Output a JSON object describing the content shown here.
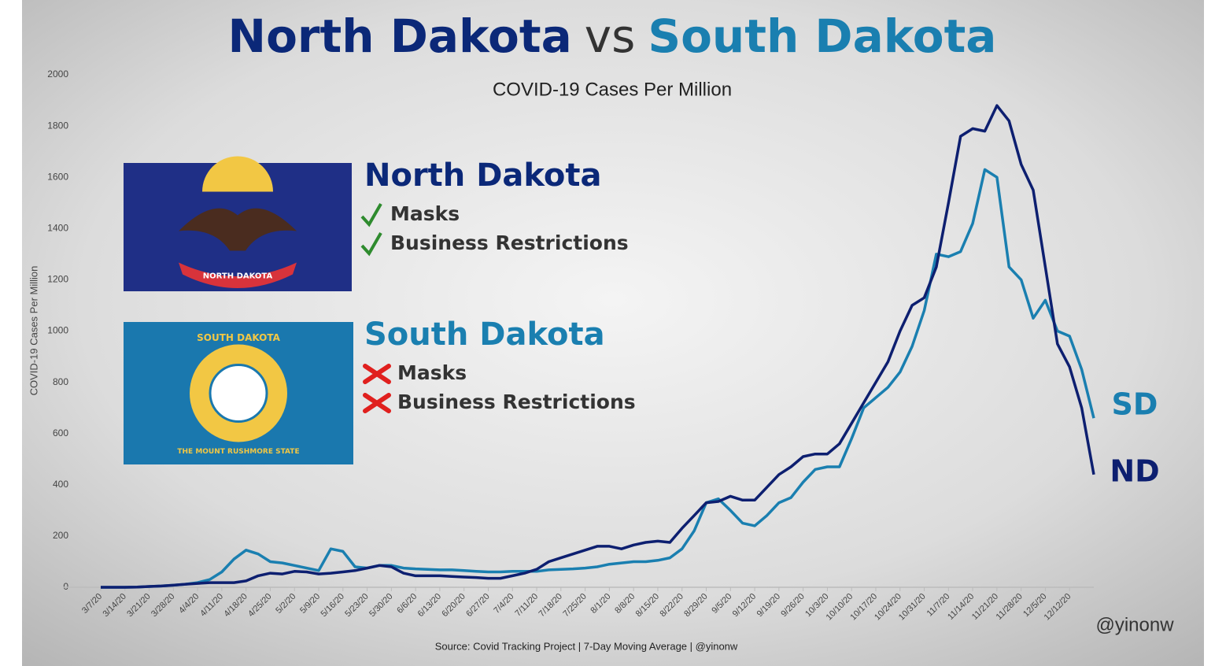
{
  "chart_data": {
    "type": "line",
    "title_parts": [
      {
        "text": "North Dakota",
        "color": "#0b2878"
      },
      {
        "text": "vs",
        "color": "#333333"
      },
      {
        "text": "South Dakota",
        "color": "#1a7fb0"
      }
    ],
    "subtitle": "COVID-19 Cases Per Million",
    "y_label": "COVID-19 Cases Per Million",
    "source": "Source: Covid Tracking Project | 7-Day Moving Average | @yinonw",
    "credit": "@yinonw",
    "categories": [
      "3/7/20",
      null,
      "3/14/20",
      null,
      "3/21/20",
      null,
      "3/28/20",
      null,
      "4/4/20",
      null,
      "4/11/20",
      null,
      "4/18/20",
      null,
      "4/25/20",
      null,
      "5/2/20",
      null,
      "5/9/20",
      null,
      "5/16/20",
      null,
      "5/23/20",
      null,
      "5/30/20",
      null,
      "6/6/20",
      null,
      "6/13/20",
      null,
      "6/20/20",
      null,
      "6/27/20",
      null,
      "7/4/20",
      null,
      "7/11/20",
      null,
      "7/18/20",
      null,
      "7/25/20",
      null,
      "8/1/20",
      null,
      "8/8/20",
      null,
      "8/15/20",
      null,
      "8/22/20",
      null,
      "8/29/20",
      null,
      "9/5/20",
      null,
      "9/12/20",
      null,
      "9/19/20",
      null,
      "9/26/20",
      null,
      "10/3/20",
      null,
      "10/10/20",
      null,
      "10/17/20",
      null,
      "10/24/20",
      null,
      "10/31/20",
      null,
      "11/7/20",
      null,
      "11/14/20",
      null,
      "11/21/20",
      null,
      "11/28/20",
      null,
      "12/5/20",
      null,
      "12/12/20",
      null,
      null
    ],
    "series": [
      {
        "name": "South Dakota",
        "end_label": "SD",
        "color": "#1a7fb0",
        "values": [
          0,
          0,
          0,
          1,
          3,
          5,
          8,
          12,
          18,
          30,
          60,
          110,
          145,
          130,
          100,
          95,
          85,
          75,
          65,
          150,
          140,
          80,
          75,
          85,
          85,
          75,
          72,
          70,
          68,
          68,
          65,
          62,
          60,
          60,
          62,
          62,
          62,
          68,
          70,
          72,
          75,
          80,
          90,
          95,
          100,
          100,
          105,
          115,
          150,
          220,
          330,
          345,
          300,
          250,
          240,
          280,
          330,
          350,
          410,
          460,
          470,
          470,
          580,
          700,
          740,
          780,
          840,
          940,
          1080,
          1300,
          1290,
          1310,
          1420,
          1630,
          1600,
          1250,
          1200,
          1050,
          1120,
          1000,
          980,
          850,
          660
        ]
      },
      {
        "name": "North Dakota",
        "end_label": "ND",
        "color": "#0d1f70",
        "values": [
          0,
          0,
          0,
          1,
          3,
          5,
          8,
          12,
          15,
          18,
          18,
          18,
          25,
          45,
          55,
          52,
          62,
          60,
          52,
          55,
          60,
          65,
          75,
          85,
          80,
          55,
          45,
          45,
          45,
          42,
          40,
          38,
          35,
          35,
          45,
          55,
          70,
          100,
          115,
          130,
          145,
          160,
          160,
          150,
          165,
          175,
          180,
          175,
          230,
          280,
          330,
          335,
          355,
          340,
          340,
          390,
          440,
          470,
          510,
          520,
          520,
          560,
          640,
          720,
          800,
          880,
          1000,
          1100,
          1130,
          1250,
          1500,
          1760,
          1790,
          1780,
          1880,
          1820,
          1650,
          1550,
          1250,
          950,
          860,
          700,
          440
        ]
      }
    ],
    "ylim": [
      0,
      2000
    ],
    "yticks": [
      0,
      200,
      400,
      600,
      800,
      1000,
      1200,
      1400,
      1600,
      1800,
      2000
    ],
    "panels": [
      {
        "name": "North Dakota",
        "color": "#0b2878",
        "flag_color": "#1f2f86",
        "flag_text": [
          "NORTH DAKOTA"
        ],
        "items": [
          {
            "text": "Masks",
            "status": "yes"
          },
          {
            "text": "Business Restrictions",
            "status": "yes"
          }
        ]
      },
      {
        "name": "South Dakota",
        "color": "#1a7fb0",
        "flag_color": "#1a78ae",
        "flag_text": [
          "SOUTH DAKOTA",
          "THE MOUNT RUSHMORE STATE"
        ],
        "items": [
          {
            "text": "Masks",
            "status": "no"
          },
          {
            "text": "Business Restrictions",
            "status": "no"
          }
        ]
      }
    ]
  }
}
